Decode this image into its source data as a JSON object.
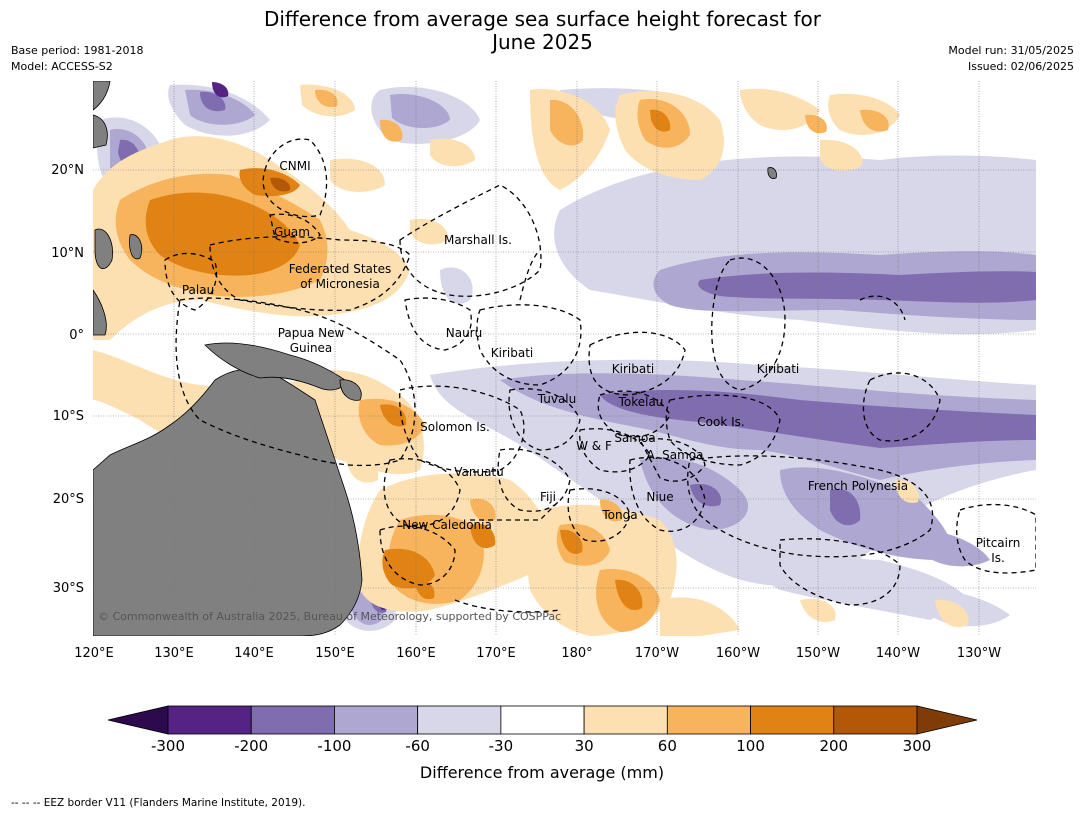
{
  "title_line1": "Difference from average sea surface height forecast for",
  "title_line2": "June 2025",
  "meta_left": [
    "Base period: 1981-2018",
    "Model: ACCESS-S2"
  ],
  "meta_right": [
    "Model run: 31/05/2025",
    "Issued: 02/06/2025"
  ],
  "lon_labels": [
    "120°E",
    "130°E",
    "140°E",
    "150°E",
    "160°E",
    "170°E",
    "180°",
    "170°W",
    "160°W",
    "150°W",
    "140°W",
    "130°W"
  ],
  "lat_labels": [
    "20°N",
    "10°N",
    "0°",
    "10°S",
    "20°S",
    "30°S"
  ],
  "place_labels": [
    "CNMI",
    "Guam",
    "Marshall Is.",
    "Federated States",
    "of Micronesia",
    "Palau",
    "Papua New",
    "Guinea",
    "Nauru",
    "Kiribati",
    "Kiribati",
    "Kiribati",
    "Tuvalu",
    "Tokelau",
    "Cook Is.",
    "Solomon Is.",
    "Samoa",
    "W & F",
    "A. Samoa",
    "Vanuatu",
    "Fiji",
    "Niue",
    "French Polynesia",
    "Tonga",
    "New Caledonia",
    "Pitcairn",
    "Is."
  ],
  "copyright": "© Commonwealth of Australia 2025, Bureau of Meteorology, supported by COSPPac",
  "colorbar": {
    "ticks": [
      "-300",
      "-200",
      "-100",
      "-60",
      "-30",
      "30",
      "60",
      "100",
      "200",
      "300"
    ],
    "colors": [
      "#2d0a4e",
      "#552384",
      "#7f6daf",
      "#aea7d2",
      "#d8d7ea",
      "#ffffff",
      "#fde0b2",
      "#f8b45c",
      "#e08214",
      "#b35807",
      "#7f3b08"
    ],
    "label": "Difference from average (mm)"
  },
  "footer": "--  --  -- EEZ border V11 (Flanders Marine Institute, 2019)."
}
